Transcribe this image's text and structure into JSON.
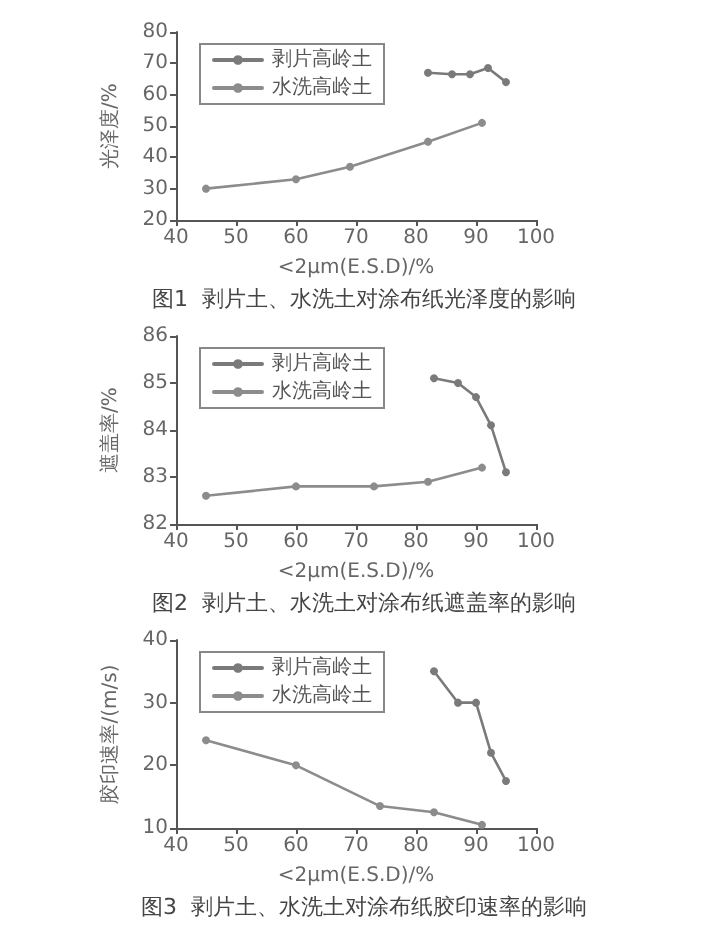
{
  "chart_data": [
    {
      "type": "line",
      "title": "图1  剥片土、水洗土对涂布纸光泽度的影响",
      "xlabel": "<2μm(E.S.D)/%",
      "ylabel": "光泽度/%",
      "xlim": [
        40,
        100
      ],
      "xticks": [
        40,
        50,
        60,
        70,
        80,
        90,
        100
      ],
      "ylim": [
        20,
        80
      ],
      "yticks": [
        20,
        30,
        40,
        50,
        60,
        70,
        80
      ],
      "grid": false,
      "legend": "top left",
      "marker": "circle",
      "line_style": "solid",
      "series": [
        {
          "name": "剥片高岭土",
          "color": "#7a7a7a",
          "x": [
            82,
            86,
            89,
            92,
            95
          ],
          "values": [
            67,
            66.5,
            66.5,
            68.5,
            64
          ]
        },
        {
          "name": "水洗高岭土",
          "color": "#8c8c8c",
          "x": [
            45,
            60,
            69,
            82,
            91
          ],
          "values": [
            30,
            33,
            37,
            45,
            51
          ]
        }
      ]
    },
    {
      "type": "line",
      "title": "图2  剥片土、水洗土对涂布纸遮盖率的影响",
      "xlabel": "<2μm(E.S.D)/%",
      "ylabel": "遮盖率/%",
      "xlim": [
        40,
        100
      ],
      "xticks": [
        40,
        50,
        60,
        70,
        80,
        90,
        100
      ],
      "ylim": [
        82,
        86
      ],
      "yticks": [
        82,
        83,
        84,
        85,
        86
      ],
      "grid": false,
      "legend": "top left",
      "marker": "circle",
      "line_style": "solid",
      "series": [
        {
          "name": "剥片高岭土",
          "color": "#7a7a7a",
          "x": [
            83,
            87,
            90,
            92.5,
            95
          ],
          "values": [
            85.1,
            85.0,
            84.7,
            84.1,
            83.1
          ]
        },
        {
          "name": "水洗高岭土",
          "color": "#8c8c8c",
          "x": [
            45,
            60,
            73,
            82,
            91
          ],
          "values": [
            82.6,
            82.8,
            82.8,
            82.9,
            83.2
          ]
        }
      ]
    },
    {
      "type": "line",
      "title": "图3  剥片土、水洗土对涂布纸胶印速率的影响",
      "xlabel": "<2μm(E.S.D)/%",
      "ylabel": "胶印速率/(m/s)",
      "xlim": [
        40,
        100
      ],
      "xticks": [
        40,
        50,
        60,
        70,
        80,
        90,
        100
      ],
      "ylim": [
        10,
        40
      ],
      "yticks": [
        10,
        20,
        30,
        40
      ],
      "grid": false,
      "legend": "top left",
      "marker": "circle",
      "line_style": "solid",
      "series": [
        {
          "name": "剥片高岭土",
          "color": "#7a7a7a",
          "x": [
            83,
            87,
            90,
            92.5,
            95
          ],
          "values": [
            35,
            30,
            30,
            22,
            17.5
          ]
        },
        {
          "name": "水洗高岭土",
          "color": "#8c8c8c",
          "x": [
            45,
            60,
            74,
            83,
            91
          ],
          "values": [
            24,
            20,
            13.5,
            12.5,
            10.5
          ]
        }
      ]
    }
  ]
}
